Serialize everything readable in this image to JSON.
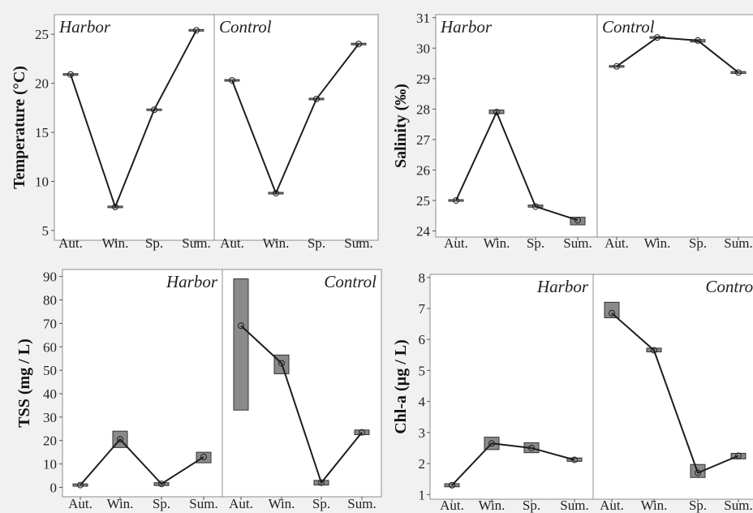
{
  "chart_data": [
    {
      "type": "line",
      "ylabel": "Temperature (°C)",
      "panels": [
        "Harbor",
        "Control"
      ],
      "categories": [
        "Aut.",
        "Win.",
        "Sp.",
        "Sum."
      ],
      "yticks": [
        "5",
        "10",
        "15",
        "20",
        "25"
      ],
      "ylim": [
        4,
        27
      ],
      "series": [
        {
          "panel": "Harbor",
          "values": [
            20.9,
            7.4,
            17.3,
            25.4
          ],
          "lower": [
            20.9,
            7.4,
            17.3,
            25.4
          ],
          "upper": [
            20.9,
            7.4,
            17.3,
            25.4
          ]
        },
        {
          "panel": "Control",
          "values": [
            20.3,
            8.8,
            18.4,
            24.0
          ],
          "lower": [
            20.3,
            8.8,
            18.4,
            24.0
          ],
          "upper": [
            20.3,
            8.8,
            18.4,
            24.0
          ]
        }
      ]
    },
    {
      "type": "line",
      "ylabel": "Salinity (‰)",
      "panels": [
        "Harbor",
        "Control"
      ],
      "categories": [
        "Aut.",
        "Win.",
        "Sp.",
        "Sum."
      ],
      "yticks": [
        "24",
        "25",
        "26",
        "27",
        "28",
        "29",
        "30",
        "31"
      ],
      "ylim": [
        23.8,
        31.1
      ],
      "series": [
        {
          "panel": "Harbor",
          "values": [
            25.0,
            27.9,
            24.8,
            24.35
          ],
          "lower": [
            25.0,
            27.85,
            24.78,
            24.2
          ],
          "upper": [
            25.0,
            27.97,
            24.85,
            24.45
          ]
        },
        {
          "panel": "Control",
          "values": [
            29.4,
            30.35,
            30.25,
            29.2
          ],
          "lower": [
            29.4,
            30.33,
            30.2,
            29.17
          ],
          "upper": [
            29.4,
            30.37,
            30.28,
            29.23
          ]
        }
      ]
    },
    {
      "type": "line",
      "ylabel": "TSS (mg / L)",
      "panels": [
        "Harbor",
        "Control"
      ],
      "categories": [
        "Aut.",
        "Win.",
        "Sp.",
        "Sum."
      ],
      "yticks": [
        "0",
        "10",
        "20",
        "30",
        "40",
        "50",
        "60",
        "70",
        "80",
        "90"
      ],
      "ylim": [
        -4,
        93
      ],
      "series": [
        {
          "panel": "Harbor",
          "values": [
            1,
            20.5,
            1.5,
            13
          ],
          "lower": [
            0.5,
            17,
            0.8,
            10.5
          ],
          "upper": [
            1.5,
            24,
            2,
            15
          ]
        },
        {
          "panel": "Control",
          "values": [
            69,
            53,
            2,
            23.5
          ],
          "lower": [
            33,
            48.5,
            1,
            22.5
          ],
          "upper": [
            89,
            56.5,
            3,
            24.5
          ]
        }
      ]
    },
    {
      "type": "line",
      "ylabel": "Chl-a (µg / L)",
      "panels": [
        "Harbor",
        "Control"
      ],
      "categories": [
        "Aut.",
        "Win.",
        "Sp.",
        "Sum."
      ],
      "yticks": [
        "1",
        "2",
        "3",
        "4",
        "5",
        "6",
        "7",
        "8"
      ],
      "ylim": [
        0.85,
        8.1
      ],
      "series": [
        {
          "panel": "Harbor",
          "values": [
            1.3,
            2.65,
            2.5,
            2.12
          ],
          "lower": [
            1.25,
            2.45,
            2.35,
            2.07
          ],
          "upper": [
            1.35,
            2.85,
            2.67,
            2.18
          ]
        },
        {
          "panel": "Control",
          "values": [
            6.85,
            5.65,
            1.7,
            2.25
          ],
          "lower": [
            6.7,
            5.6,
            1.55,
            2.15
          ],
          "upper": [
            7.2,
            5.72,
            1.97,
            2.33
          ]
        }
      ]
    }
  ]
}
